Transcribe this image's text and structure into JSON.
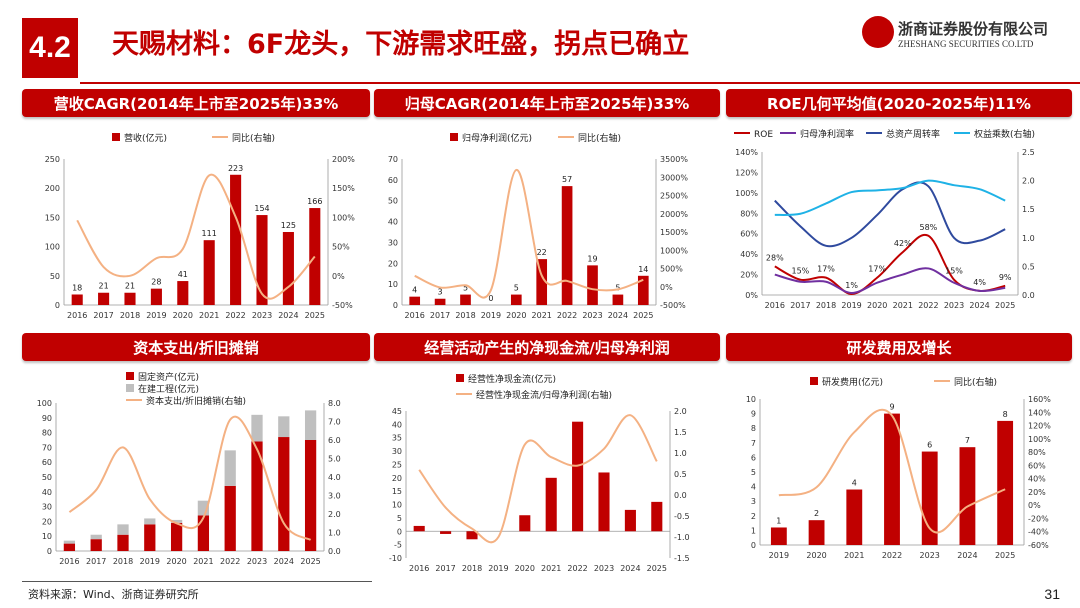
{
  "header": {
    "section": "4.2",
    "title": "天赐材料：6F龙头，下游需求旺盛，拐点已确立",
    "logo_cn": "浙商证券股份有限公司",
    "logo_en": "ZHESHANG SECURITIES CO.LTD"
  },
  "footer": {
    "source": "资料来源：Wind、浙商证券研究所",
    "page": "31"
  },
  "colors": {
    "red": "#c00000",
    "orange": "#f4b183",
    "gray": "#bfbfbf",
    "purple": "#7030a0",
    "navy": "#2f4a9e",
    "cyan": "#1fb2e6"
  },
  "panels": [
    {
      "heading": "营收CAGR(2014年上市至2025年)33%"
    },
    {
      "heading": "归母CAGR(2014年上市至2025年)33%"
    },
    {
      "heading": "ROE几何平均值(2020-2025年)11%"
    },
    {
      "heading": "资本支出/折旧摊销"
    },
    {
      "heading": "经营活动产生的净现金流/归母净利润"
    },
    {
      "heading": "研发费用及增长"
    }
  ],
  "chart_data": [
    {
      "type": "bar",
      "categories": [
        "2016",
        "2017",
        "2018",
        "2019",
        "2020",
        "2021",
        "2022",
        "2023",
        "2024",
        "2025"
      ],
      "series": [
        {
          "name": "营收(亿元)",
          "type": "bar",
          "axis": "left",
          "values": [
            18,
            21,
            21,
            28,
            41,
            111,
            223,
            154,
            125,
            166
          ],
          "labels": [
            "18",
            "21",
            "21",
            "28",
            "41",
            "111",
            "223",
            "154",
            "125",
            "166"
          ]
        },
        {
          "name": "同比(右轴)",
          "type": "line",
          "axis": "right",
          "values": [
            95,
            15,
            0,
            30,
            46,
            172,
            101,
            -31,
            -19,
            33
          ]
        }
      ],
      "ylim": [
        0,
        250
      ],
      "yticks": [
        "0",
        "50",
        "100",
        "150",
        "200",
        "250"
      ],
      "y2lim": [
        -50,
        200
      ],
      "y2ticks": [
        "-50%",
        "0%",
        "50%",
        "100%",
        "150%",
        "200%"
      ]
    },
    {
      "type": "bar",
      "categories": [
        "2016",
        "2017",
        "2018",
        "2019",
        "2020",
        "2021",
        "2022",
        "2023",
        "2024",
        "2025"
      ],
      "series": [
        {
          "name": "归母净利润(亿元)",
          "type": "bar",
          "axis": "left",
          "values": [
            4,
            3,
            5,
            0,
            5,
            22,
            57,
            19,
            5,
            14
          ],
          "labels": [
            "4",
            "3",
            "5",
            "0",
            "5",
            "22",
            "57",
            "19",
            "5",
            "14"
          ]
        },
        {
          "name": "同比(右轴)",
          "type": "line",
          "axis": "right",
          "values": [
            300,
            -20,
            40,
            -90,
            3200,
            310,
            160,
            -67,
            -72,
            190
          ]
        }
      ],
      "ylim": [
        0,
        70
      ],
      "yticks": [
        "0",
        "10",
        "20",
        "30",
        "40",
        "50",
        "60",
        "70"
      ],
      "y2lim": [
        -500,
        3500
      ],
      "y2ticks": [
        "-500%",
        "0%",
        "500%",
        "1000%",
        "1500%",
        "2000%",
        "2500%",
        "3000%",
        "3500%"
      ]
    },
    {
      "type": "line",
      "categories": [
        "2016",
        "2017",
        "2018",
        "2019",
        "2020",
        "2021",
        "2022",
        "2023",
        "2024",
        "2025"
      ],
      "series": [
        {
          "name": "ROE",
          "axis": "left",
          "values": [
            28,
            15,
            17,
            1,
            17,
            42,
            58,
            15,
            4,
            9
          ],
          "labels": [
            "28%",
            "15%",
            "17%",
            "1%",
            "17%",
            "42%",
            "58%",
            "15%",
            "4%",
            "9%"
          ]
        },
        {
          "name": "归母净利润率",
          "axis": "left",
          "values": [
            20,
            13,
            13,
            2,
            12,
            20,
            26,
            12,
            4,
            7
          ]
        },
        {
          "name": "总资产周转率",
          "axis": "right",
          "values": [
            1.65,
            1.2,
            0.86,
            1.0,
            1.4,
            1.85,
            1.9,
            1.0,
            0.95,
            1.15
          ]
        },
        {
          "name": "权益乘数(右轴)",
          "axis": "right",
          "values": [
            1.4,
            1.42,
            1.6,
            1.8,
            1.83,
            1.87,
            2.0,
            1.92,
            1.85,
            1.65
          ]
        }
      ],
      "ylim": [
        0,
        140
      ],
      "yticks": [
        "0%",
        "20%",
        "40%",
        "60%",
        "80%",
        "100%",
        "120%",
        "140%"
      ],
      "y2lim": [
        0,
        2.5
      ],
      "y2ticks": [
        "0.0",
        "0.5",
        "1.0",
        "1.5",
        "2.0",
        "2.5"
      ]
    },
    {
      "type": "bar",
      "stacked": true,
      "categories": [
        "2016",
        "2017",
        "2018",
        "2019",
        "2020",
        "2021",
        "2022",
        "2023",
        "2024",
        "2025"
      ],
      "series": [
        {
          "name": "固定资产(亿元)",
          "type": "bar",
          "axis": "left",
          "values": [
            5,
            8,
            11,
            18,
            19,
            24,
            44,
            74,
            77,
            75
          ]
        },
        {
          "name": "在建工程(亿元)",
          "type": "bar",
          "axis": "left",
          "values": [
            2,
            3,
            7,
            4,
            2,
            10,
            24,
            18,
            14,
            20
          ]
        },
        {
          "name": "资本支出/折旧摊销(右轴)",
          "type": "line",
          "axis": "right",
          "values": [
            2.1,
            3.3,
            5.6,
            2.8,
            1.5,
            1.8,
            7.1,
            5.5,
            1.5,
            0.6
          ]
        }
      ],
      "ylim": [
        0,
        100
      ],
      "yticks": [
        "0",
        "10",
        "20",
        "30",
        "40",
        "50",
        "60",
        "70",
        "80",
        "90",
        "100"
      ],
      "y2lim": [
        0,
        8
      ],
      "y2ticks": [
        "0.0",
        "1.0",
        "2.0",
        "3.0",
        "4.0",
        "5.0",
        "6.0",
        "7.0",
        "8.0"
      ]
    },
    {
      "type": "bar",
      "categories": [
        "2016",
        "2017",
        "2018",
        "2019",
        "2020",
        "2021",
        "2022",
        "2023",
        "2024",
        "2025"
      ],
      "series": [
        {
          "name": "经营性净现金流(亿元)",
          "type": "bar",
          "axis": "left",
          "values": [
            2,
            -1,
            -3,
            0,
            6,
            20,
            41,
            22,
            8,
            11
          ]
        },
        {
          "name": "经营性净现金流/归母净利润(右轴)",
          "type": "line",
          "axis": "right",
          "values": [
            0.6,
            -0.3,
            -0.8,
            -1.0,
            1.2,
            0.9,
            0.7,
            1.1,
            1.9,
            0.8
          ]
        }
      ],
      "ylim": [
        -10,
        45
      ],
      "yticks": [
        "-10",
        "-5",
        "0",
        "5",
        "10",
        "15",
        "20",
        "25",
        "30",
        "35",
        "40",
        "45"
      ],
      "y2lim": [
        -1.5,
        2.0
      ],
      "y2ticks": [
        "-1.5",
        "-1.0",
        "-0.5",
        "0.0",
        "0.5",
        "1.0",
        "1.5",
        "2.0"
      ]
    },
    {
      "type": "bar",
      "categories": [
        "2019",
        "2020",
        "2021",
        "2022",
        "2023",
        "2024",
        "2025"
      ],
      "series": [
        {
          "name": "研发费用(亿元)",
          "type": "bar",
          "axis": "left",
          "values": [
            1.2,
            1.7,
            3.8,
            9,
            6.4,
            6.7,
            8.5
          ],
          "labels": [
            "1",
            "2",
            "4",
            "9",
            "6",
            "7",
            "8"
          ]
        },
        {
          "name": "同比(右轴)",
          "type": "line",
          "axis": "right",
          "values": [
            15,
            27,
            110,
            135,
            -35,
            -2,
            24
          ]
        }
      ],
      "ylim": [
        0,
        10
      ],
      "yticks": [
        "0",
        "1",
        "2",
        "3",
        "4",
        "5",
        "6",
        "7",
        "8",
        "9",
        "10"
      ],
      "y2lim": [
        -60,
        160
      ],
      "y2ticks": [
        "-60%",
        "-40%",
        "-20%",
        "0%",
        "20%",
        "40%",
        "60%",
        "80%",
        "100%",
        "120%",
        "140%",
        "160%"
      ]
    }
  ]
}
